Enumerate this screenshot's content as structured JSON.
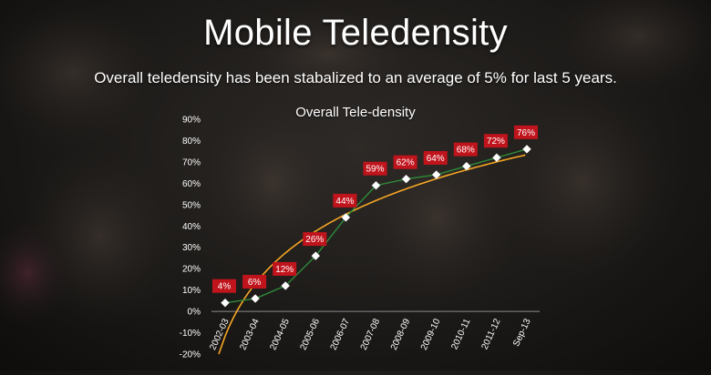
{
  "slide": {
    "title": "Mobile Teledensity",
    "subtitle": "Overall teledensity has been stabalized to an average of 5% for last 5 years."
  },
  "colors": {
    "series_line": "#2e8b3a",
    "trend_line": "#f5a623",
    "marker": "#ffffff",
    "label_box": "#c0141c"
  },
  "chart_data": {
    "type": "line",
    "title": "Overall Tele-density",
    "xlabel": "",
    "ylabel": "",
    "ylim": [
      -20,
      90
    ],
    "y_ticks": [
      90,
      80,
      70,
      60,
      50,
      40,
      30,
      20,
      10,
      0,
      -10,
      -20
    ],
    "y_tick_labels": [
      "90%",
      "80%",
      "70%",
      "60%",
      "50%",
      "40%",
      "30%",
      "20%",
      "10%",
      "0%",
      "-10%",
      "-20%"
    ],
    "categories": [
      "2002-03",
      "2003-04",
      "2004-05",
      "2005-06",
      "2006-07",
      "2007-08",
      "2008-09",
      "2009-10",
      "2010-11",
      "2011-12",
      "Sep-13"
    ],
    "series": [
      {
        "values": [
          4,
          6,
          12,
          26,
          44,
          59,
          62,
          64,
          68,
          72,
          76
        ],
        "data_labels": [
          "4%",
          "6%",
          "12%",
          "26%",
          "44%",
          "59%",
          "62%",
          "64%",
          "68%",
          "72%",
          "76%"
        ],
        "marker": "diamond"
      }
    ],
    "trendline": "logarithmic",
    "grid": false,
    "legend": "none"
  }
}
